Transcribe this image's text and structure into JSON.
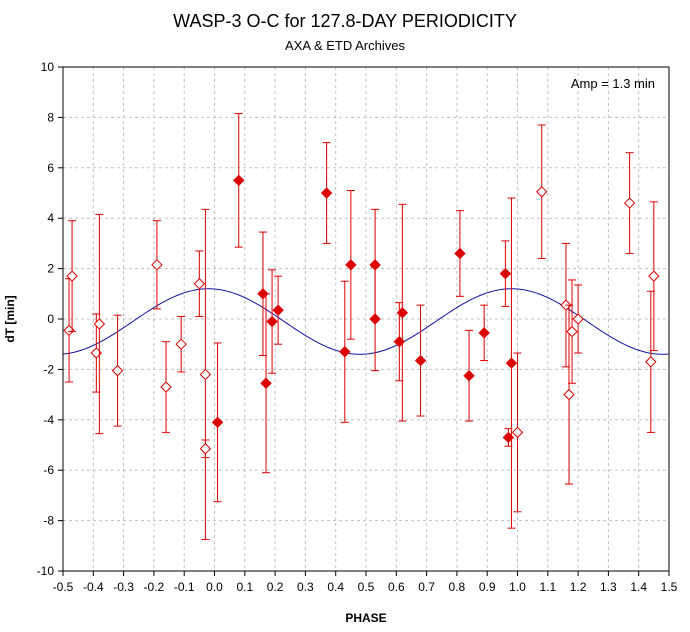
{
  "chart_data": {
    "type": "scatter",
    "title": "WASP-3 O-C for 127.8-DAY PERIODICITY",
    "subtitle": "AXA & ETD Archives",
    "xlabel": "PHASE",
    "ylabel": "dT [min]",
    "annotation": "Amp = 1.3 min",
    "xlim": [
      -0.5,
      1.5
    ],
    "ylim": [
      -10,
      10
    ],
    "xticks": [
      -0.5,
      -0.4,
      -0.3,
      -0.2,
      -0.1,
      0.0,
      0.1,
      0.2,
      0.3,
      0.4,
      0.5,
      0.6,
      0.7,
      0.8,
      0.9,
      1.0,
      1.1,
      1.2,
      1.3,
      1.4,
      1.5
    ],
    "xtick_labels": [
      "-0.5",
      "-0.4",
      "-0.3",
      "-0.2",
      "-0.1",
      "0.0",
      "0.1",
      "0.2",
      "0.3",
      "0.4",
      "0.5",
      "0.6",
      "0.7",
      "0.8",
      "0.9",
      "1.0",
      "1.1",
      "1.2",
      "1.3",
      "1.4",
      "1.5"
    ],
    "yticks": [
      -10,
      -8,
      -6,
      -4,
      -2,
      0,
      2,
      4,
      6,
      8,
      10
    ],
    "ytick_labels": [
      "-10",
      "-8",
      "-6",
      "-4",
      "-2",
      "0",
      "2",
      "4",
      "6",
      "8",
      "10"
    ],
    "grid": true,
    "colors": {
      "points": "#dd0000",
      "errorbars": "#dd0000",
      "model": "#1010a0",
      "grid": "#c0c0c0"
    },
    "model": {
      "type": "sine",
      "amplitude": 1.3,
      "period": 1.0,
      "peak_phase": -0.02,
      "offset": -0.1
    },
    "series": [
      {
        "marker": "diamond-filled",
        "points": [
          {
            "x": 0.08,
            "y": 5.5,
            "err": 2.65
          },
          {
            "x": 0.01,
            "y": -4.1,
            "err": 3.15
          },
          {
            "x": 0.16,
            "y": 1.0,
            "err": 2.45
          },
          {
            "x": 0.17,
            "y": -2.55,
            "err": 3.55
          },
          {
            "x": 0.19,
            "y": -0.1,
            "err": 2.05
          },
          {
            "x": 0.21,
            "y": 0.35,
            "err": 1.35
          },
          {
            "x": 0.37,
            "y": 5.0,
            "err": 2.0
          },
          {
            "x": 0.43,
            "y": -1.3,
            "err": 2.8
          },
          {
            "x": 0.45,
            "y": 2.15,
            "err": 2.95
          },
          {
            "x": 0.53,
            "y": 2.15,
            "err": 2.2
          },
          {
            "x": 0.53,
            "y": 0.0,
            "err": 2.05
          },
          {
            "x": 0.61,
            "y": -0.9,
            "err": 1.55
          },
          {
            "x": 0.62,
            "y": 0.25,
            "err": 4.3
          },
          {
            "x": 0.68,
            "y": -1.65,
            "err": 2.2
          },
          {
            "x": 0.81,
            "y": 2.6,
            "err": 1.7
          },
          {
            "x": 0.84,
            "y": -2.25,
            "err": 1.8
          },
          {
            "x": 0.89,
            "y": -0.55,
            "err": 1.1
          },
          {
            "x": 0.96,
            "y": 1.8,
            "err": 1.3
          },
          {
            "x": 0.98,
            "y": -1.75,
            "err": 6.55
          },
          {
            "x": 0.97,
            "y": -4.7,
            "err": 0.35
          }
        ]
      },
      {
        "marker": "diamond-open",
        "points": [
          {
            "x": -0.48,
            "y": -0.45,
            "err": 2.05
          },
          {
            "x": -0.47,
            "y": 1.7,
            "err": 2.2
          },
          {
            "x": -0.39,
            "y": -1.35,
            "err": 1.55
          },
          {
            "x": -0.38,
            "y": -0.2,
            "err": 4.35
          },
          {
            "x": -0.32,
            "y": -2.05,
            "err": 2.2
          },
          {
            "x": -0.19,
            "y": 2.15,
            "err": 1.75
          },
          {
            "x": -0.16,
            "y": -2.7,
            "err": 1.8
          },
          {
            "x": -0.11,
            "y": -1.0,
            "err": 1.1
          },
          {
            "x": -0.05,
            "y": 1.4,
            "err": 1.3
          },
          {
            "x": -0.03,
            "y": -2.2,
            "err": 6.55
          },
          {
            "x": -0.03,
            "y": -5.15,
            "err": 0.35
          },
          {
            "x": 1.0,
            "y": -4.5,
            "err": 3.15
          },
          {
            "x": 1.08,
            "y": 5.05,
            "err": 2.65
          },
          {
            "x": 1.16,
            "y": 0.55,
            "err": 2.45
          },
          {
            "x": 1.17,
            "y": -3.0,
            "err": 3.55
          },
          {
            "x": 1.18,
            "y": -0.5,
            "err": 2.05
          },
          {
            "x": 1.2,
            "y": 0.0,
            "err": 1.35
          },
          {
            "x": 1.37,
            "y": 4.6,
            "err": 2.0
          },
          {
            "x": 1.44,
            "y": -1.7,
            "err": 2.8
          },
          {
            "x": 1.45,
            "y": 1.7,
            "err": 2.95
          }
        ]
      }
    ]
  }
}
